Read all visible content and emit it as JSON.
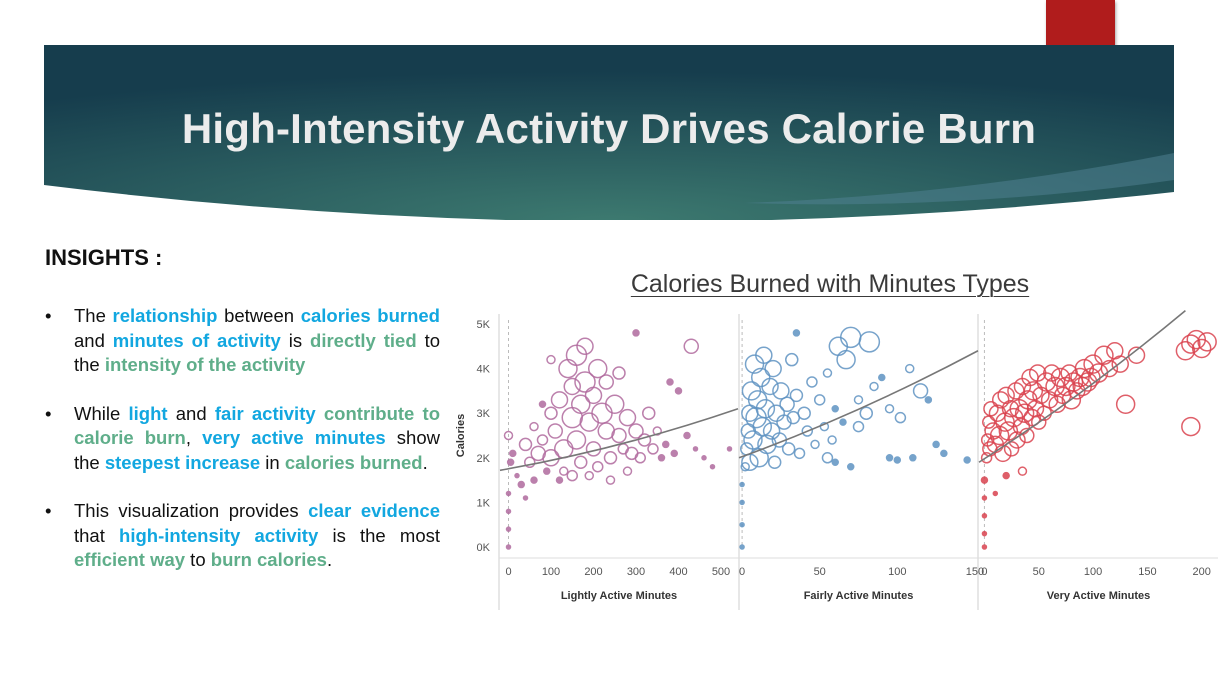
{
  "title": "High-Intensity Activity Drives Calorie Burn",
  "insights": {
    "heading": "INSIGHTS :",
    "bullets": [
      [
        {
          "t": "The ",
          "s": ""
        },
        {
          "t": "relationship",
          "s": "b"
        },
        {
          "t": " between ",
          "s": ""
        },
        {
          "t": "calories burned",
          "s": "b"
        },
        {
          "t": " and ",
          "s": ""
        },
        {
          "t": "minutes of activity",
          "s": "b"
        },
        {
          "t": " is ",
          "s": ""
        },
        {
          "t": "directly tied",
          "s": "g"
        },
        {
          "t": " to the ",
          "s": ""
        },
        {
          "t": "intensity of the activity",
          "s": "g"
        }
      ],
      [
        {
          "t": "While ",
          "s": ""
        },
        {
          "t": "light",
          "s": "b"
        },
        {
          "t": " and ",
          "s": ""
        },
        {
          "t": "fair activity",
          "s": "b"
        },
        {
          "t": " ",
          "s": ""
        },
        {
          "t": "contribute to calorie burn",
          "s": "g"
        },
        {
          "t": ", ",
          "s": ""
        },
        {
          "t": "very active minutes",
          "s": "b"
        },
        {
          "t": " show the ",
          "s": ""
        },
        {
          "t": "steepest increase",
          "s": "b"
        },
        {
          "t": " in ",
          "s": ""
        },
        {
          "t": "calories burned",
          "s": "g"
        },
        {
          "t": ".",
          "s": ""
        }
      ],
      [
        {
          "t": "This visualization provides ",
          "s": ""
        },
        {
          "t": "clear evidence",
          "s": "b"
        },
        {
          "t": " that ",
          "s": ""
        },
        {
          "t": "high-intensity activity",
          "s": "b"
        },
        {
          "t": " is the most ",
          "s": ""
        },
        {
          "t": "efficient way",
          "s": "g"
        },
        {
          "t": " to ",
          "s": ""
        },
        {
          "t": "burn calories",
          "s": "g"
        },
        {
          "t": ".",
          "s": ""
        }
      ]
    ]
  },
  "colors": {
    "banner_dark": "#163d4d",
    "banner_light": "#3d7a70",
    "accent_red": "#b01c1c",
    "highlight_blue": "#12a7e0",
    "highlight_green": "#5fae8a"
  },
  "chart_data": {
    "type": "scatter",
    "title": "Calories Burned with Minutes Types",
    "ylabel": "Calories",
    "ylim": [
      0,
      5000
    ],
    "yticks": [
      0,
      1000,
      2000,
      3000,
      4000,
      5000
    ],
    "ytick_labels": [
      "0K",
      "1K",
      "2K",
      "3K",
      "4K",
      "5K"
    ],
    "panels": [
      {
        "name": "Lightly Active Minutes",
        "color": "#b06a9e",
        "xlim": [
          -20,
          540
        ],
        "xticks": [
          0,
          100,
          200,
          300,
          400,
          500
        ],
        "trend": [
          [
            -20,
            1720
          ],
          [
            540,
            3100
          ]
        ],
        "points": [
          [
            0,
            0,
            2
          ],
          [
            0,
            400,
            2
          ],
          [
            0,
            800,
            2
          ],
          [
            0,
            1200,
            2
          ],
          [
            0,
            2500,
            4
          ],
          [
            5,
            1900,
            3
          ],
          [
            10,
            2100,
            3
          ],
          [
            20,
            1600,
            2
          ],
          [
            30,
            1400,
            3
          ],
          [
            40,
            1100,
            2
          ],
          [
            40,
            2300,
            6
          ],
          [
            50,
            1900,
            5
          ],
          [
            60,
            2700,
            4
          ],
          [
            70,
            2100,
            7
          ],
          [
            80,
            2400,
            5
          ],
          [
            90,
            1700,
            3
          ],
          [
            100,
            3000,
            6
          ],
          [
            100,
            2000,
            8
          ],
          [
            110,
            2600,
            7
          ],
          [
            120,
            3300,
            8
          ],
          [
            130,
            2200,
            9
          ],
          [
            130,
            1700,
            4
          ],
          [
            140,
            4000,
            9
          ],
          [
            150,
            2900,
            10
          ],
          [
            150,
            3600,
            8
          ],
          [
            160,
            2400,
            9
          ],
          [
            160,
            4300,
            10
          ],
          [
            170,
            3200,
            9
          ],
          [
            170,
            1900,
            6
          ],
          [
            180,
            4500,
            8
          ],
          [
            180,
            3700,
            10
          ],
          [
            190,
            2800,
            9
          ],
          [
            200,
            3400,
            8
          ],
          [
            200,
            2200,
            7
          ],
          [
            210,
            4000,
            9
          ],
          [
            210,
            1800,
            5
          ],
          [
            220,
            3000,
            10
          ],
          [
            230,
            2600,
            8
          ],
          [
            230,
            3700,
            7
          ],
          [
            240,
            2000,
            6
          ],
          [
            250,
            3200,
            9
          ],
          [
            260,
            2500,
            7
          ],
          [
            260,
            3900,
            6
          ],
          [
            270,
            2200,
            5
          ],
          [
            280,
            2900,
            8
          ],
          [
            290,
            2100,
            6
          ],
          [
            300,
            2600,
            7
          ],
          [
            310,
            2000,
            5
          ],
          [
            320,
            2400,
            6
          ],
          [
            330,
            3000,
            6
          ],
          [
            340,
            2200,
            5
          ],
          [
            350,
            2600,
            4
          ],
          [
            360,
            2000,
            3
          ],
          [
            370,
            2300,
            3
          ],
          [
            380,
            3700,
            3
          ],
          [
            390,
            2100,
            3
          ],
          [
            400,
            3500,
            3
          ],
          [
            420,
            2500,
            3
          ],
          [
            440,
            2200,
            2
          ],
          [
            460,
            2000,
            2
          ],
          [
            480,
            1800,
            2
          ],
          [
            520,
            2200,
            2
          ],
          [
            300,
            4800,
            3
          ],
          [
            430,
            4500,
            7
          ],
          [
            100,
            4200,
            4
          ],
          [
            80,
            3200,
            3
          ],
          [
            60,
            1500,
            3
          ],
          [
            190,
            1600,
            4
          ],
          [
            240,
            1500,
            4
          ],
          [
            280,
            1700,
            4
          ],
          [
            120,
            1500,
            3
          ],
          [
            150,
            1600,
            5
          ]
        ]
      },
      {
        "name": "Fairly Active Minutes",
        "color": "#5f93c2",
        "xlim": [
          -2,
          152
        ],
        "xticks": [
          0,
          50,
          100,
          150
        ],
        "trend": [
          [
            -2,
            2000
          ],
          [
            152,
            4400
          ]
        ],
        "points": [
          [
            0,
            0,
            2
          ],
          [
            0,
            500,
            2
          ],
          [
            0,
            1000,
            2
          ],
          [
            0,
            1400,
            2
          ],
          [
            2,
            1800,
            4
          ],
          [
            3,
            2200,
            6
          ],
          [
            4,
            2600,
            7
          ],
          [
            5,
            3000,
            8
          ],
          [
            5,
            1900,
            8
          ],
          [
            6,
            3500,
            9
          ],
          [
            7,
            2400,
            9
          ],
          [
            8,
            4100,
            9
          ],
          [
            9,
            2900,
            10
          ],
          [
            10,
            3300,
            9
          ],
          [
            11,
            2000,
            9
          ],
          [
            12,
            3800,
            9
          ],
          [
            13,
            2700,
            9
          ],
          [
            14,
            4300,
            8
          ],
          [
            15,
            3100,
            9
          ],
          [
            16,
            2300,
            9
          ],
          [
            18,
            3600,
            8
          ],
          [
            19,
            2600,
            8
          ],
          [
            20,
            4000,
            8
          ],
          [
            21,
            1900,
            6
          ],
          [
            22,
            3000,
            8
          ],
          [
            24,
            2400,
            7
          ],
          [
            25,
            3500,
            8
          ],
          [
            27,
            2800,
            7
          ],
          [
            29,
            3200,
            7
          ],
          [
            30,
            2200,
            6
          ],
          [
            32,
            4200,
            6
          ],
          [
            33,
            2900,
            6
          ],
          [
            35,
            3400,
            6
          ],
          [
            37,
            2100,
            5
          ],
          [
            40,
            3000,
            6
          ],
          [
            42,
            2600,
            5
          ],
          [
            45,
            3700,
            5
          ],
          [
            47,
            2300,
            4
          ],
          [
            50,
            3300,
            5
          ],
          [
            53,
            2700,
            4
          ],
          [
            55,
            3900,
            4
          ],
          [
            58,
            2400,
            4
          ],
          [
            60,
            3100,
            3
          ],
          [
            62,
            4500,
            9
          ],
          [
            65,
            2800,
            3
          ],
          [
            67,
            4200,
            9
          ],
          [
            70,
            4700,
            10
          ],
          [
            75,
            3300,
            4
          ],
          [
            80,
            3000,
            6
          ],
          [
            82,
            4600,
            10
          ],
          [
            85,
            3600,
            4
          ],
          [
            90,
            3800,
            3
          ],
          [
            95,
            2000,
            3
          ],
          [
            100,
            1950,
            3
          ],
          [
            110,
            2000,
            3
          ],
          [
            115,
            3500,
            7
          ],
          [
            120,
            3300,
            3
          ],
          [
            125,
            2300,
            3
          ],
          [
            130,
            2100,
            3
          ],
          [
            145,
            1950,
            3
          ],
          [
            60,
            1900,
            3
          ],
          [
            70,
            1800,
            3
          ],
          [
            35,
            4800,
            3
          ],
          [
            55,
            2000,
            5
          ],
          [
            75,
            2700,
            5
          ],
          [
            95,
            3100,
            4
          ],
          [
            102,
            2900,
            5
          ],
          [
            108,
            4000,
            4
          ]
        ]
      },
      {
        "name": "Very Active Minutes",
        "color": "#d9434f",
        "xlim": [
          -5,
          215
        ],
        "xticks": [
          0,
          50,
          100,
          150,
          200
        ],
        "trend": [
          [
            -5,
            1900
          ],
          [
            185,
            5300
          ]
        ],
        "points": [
          [
            0,
            0,
            2
          ],
          [
            0,
            300,
            2
          ],
          [
            0,
            700,
            2
          ],
          [
            0,
            1100,
            2
          ],
          [
            0,
            1500,
            3
          ],
          [
            2,
            2000,
            5
          ],
          [
            3,
            2400,
            6
          ],
          [
            4,
            2800,
            6
          ],
          [
            5,
            2200,
            7
          ],
          [
            6,
            3100,
            7
          ],
          [
            8,
            2600,
            8
          ],
          [
            10,
            2300,
            8
          ],
          [
            12,
            3000,
            8
          ],
          [
            14,
            2500,
            9
          ],
          [
            15,
            3300,
            8
          ],
          [
            17,
            2100,
            8
          ],
          [
            19,
            2800,
            9
          ],
          [
            20,
            3400,
            8
          ],
          [
            22,
            2600,
            9
          ],
          [
            24,
            3100,
            8
          ],
          [
            25,
            2200,
            7
          ],
          [
            27,
            2900,
            9
          ],
          [
            29,
            3500,
            8
          ],
          [
            30,
            2400,
            8
          ],
          [
            32,
            3100,
            9
          ],
          [
            34,
            2700,
            8
          ],
          [
            35,
            3600,
            8
          ],
          [
            37,
            3000,
            9
          ],
          [
            39,
            2500,
            7
          ],
          [
            40,
            3300,
            9
          ],
          [
            42,
            3800,
            8
          ],
          [
            44,
            2900,
            8
          ],
          [
            45,
            3500,
            9
          ],
          [
            47,
            3100,
            8
          ],
          [
            49,
            3900,
            8
          ],
          [
            50,
            2800,
            7
          ],
          [
            52,
            3400,
            8
          ],
          [
            55,
            3000,
            7
          ],
          [
            57,
            3700,
            9
          ],
          [
            60,
            3300,
            8
          ],
          [
            62,
            3900,
            8
          ],
          [
            65,
            3600,
            9
          ],
          [
            67,
            3200,
            8
          ],
          [
            70,
            3800,
            9
          ],
          [
            72,
            3400,
            8
          ],
          [
            75,
            3600,
            9
          ],
          [
            78,
            3900,
            8
          ],
          [
            80,
            3300,
            9
          ],
          [
            82,
            3700,
            9
          ],
          [
            85,
            3500,
            8
          ],
          [
            88,
            3800,
            9
          ],
          [
            90,
            3600,
            9
          ],
          [
            92,
            4000,
            9
          ],
          [
            95,
            3700,
            9
          ],
          [
            98,
            3800,
            9
          ],
          [
            100,
            4100,
            9
          ],
          [
            105,
            3900,
            9
          ],
          [
            110,
            4300,
            9
          ],
          [
            115,
            4000,
            8
          ],
          [
            120,
            4400,
            8
          ],
          [
            125,
            4100,
            8
          ],
          [
            130,
            3200,
            9
          ],
          [
            140,
            4300,
            8
          ],
          [
            185,
            4400,
            9
          ],
          [
            190,
            4550,
            9
          ],
          [
            195,
            4650,
            9
          ],
          [
            200,
            4450,
            9
          ],
          [
            205,
            4600,
            9
          ],
          [
            190,
            2700,
            9
          ],
          [
            10,
            1200,
            2
          ],
          [
            20,
            1600,
            3
          ],
          [
            35,
            1700,
            4
          ]
        ]
      }
    ],
    "grid": "none",
    "legend": "none"
  }
}
